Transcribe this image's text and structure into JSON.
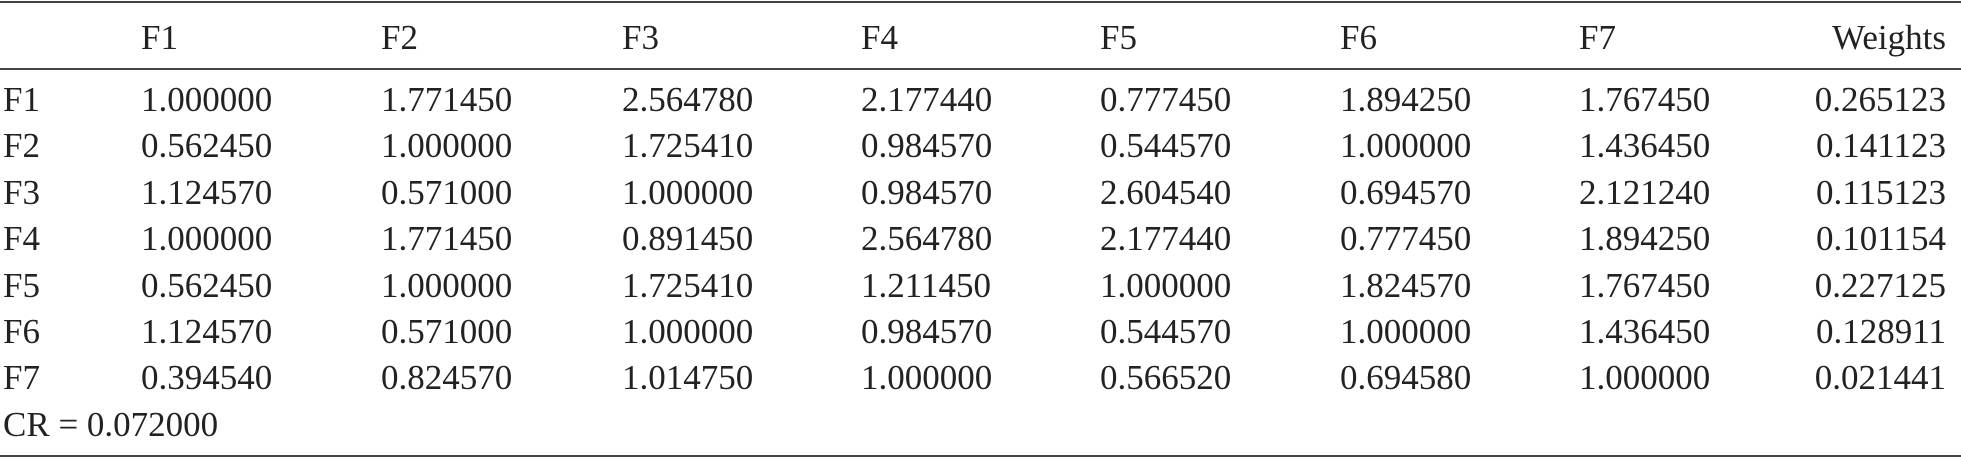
{
  "table": {
    "columns": [
      "F1",
      "F2",
      "F3",
      "F4",
      "F5",
      "F6",
      "F7",
      "Weights"
    ],
    "rows": [
      {
        "label": "F1",
        "cells": [
          "1.000000",
          "1.771450",
          "2.564780",
          "2.177440",
          "0.777450",
          "1.894250",
          "1.767450",
          "0.265123"
        ]
      },
      {
        "label": "F2",
        "cells": [
          "0.562450",
          "1.000000",
          "1.725410",
          "0.984570",
          "0.544570",
          "1.000000",
          "1.436450",
          "0.141123"
        ]
      },
      {
        "label": "F3",
        "cells": [
          "1.124570",
          "0.571000",
          "1.000000",
          "0.984570",
          "2.604540",
          "0.694570",
          "2.121240",
          "0.115123"
        ]
      },
      {
        "label": "F4",
        "cells": [
          "1.000000",
          "1.771450",
          "0.891450",
          "2.564780",
          "2.177440",
          "0.777450",
          "1.894250",
          "0.101154"
        ]
      },
      {
        "label": "F5",
        "cells": [
          "0.562450",
          "1.000000",
          "1.725410",
          "1.211450",
          "1.000000",
          "1.824570",
          "1.767450",
          "0.227125"
        ]
      },
      {
        "label": "F6",
        "cells": [
          "1.124570",
          "0.571000",
          "1.000000",
          "0.984570",
          "0.544570",
          "1.000000",
          "1.436450",
          "0.128911"
        ]
      },
      {
        "label": "F7",
        "cells": [
          "0.394540",
          "0.824570",
          "1.014750",
          "1.000000",
          "0.566520",
          "0.694580",
          "1.000000",
          "0.021441"
        ]
      }
    ],
    "footer": "CR = 0.072000"
  }
}
